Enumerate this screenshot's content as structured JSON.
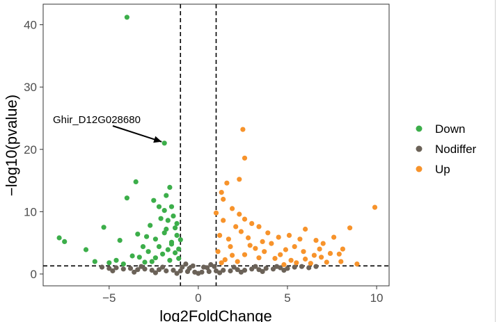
{
  "chart_data": {
    "type": "scatter",
    "title": "",
    "xlabel": "log2FoldChange",
    "ylabel": "−log10(pvalue)",
    "xlim": [
      -8.7,
      10.7
    ],
    "ylim": [
      -1.9,
      43.3
    ],
    "x_ticks": [
      -5,
      0,
      5,
      10
    ],
    "y_ticks": [
      0,
      10,
      20,
      30,
      40
    ],
    "grid": false,
    "legend_position": "right",
    "thresholds": {
      "log2fc": [
        -1,
        1
      ],
      "neg_log10_p": 1.3
    },
    "series": [
      {
        "name": "Down",
        "color": "#3cae4a",
        "points": [
          [
            -4.0,
            41.2
          ],
          [
            -1.9,
            21.0
          ],
          [
            -3.5,
            14.8
          ],
          [
            -4.0,
            12.2
          ],
          [
            -1.6,
            13.9
          ],
          [
            -1.8,
            12.6
          ],
          [
            -2.5,
            11.8
          ],
          [
            -2.2,
            10.8
          ],
          [
            -1.9,
            10.2
          ],
          [
            -1.5,
            10.8
          ],
          [
            -7.8,
            5.8
          ],
          [
            -7.5,
            5.2
          ],
          [
            -6.3,
            3.9
          ],
          [
            -5.3,
            7.5
          ],
          [
            -4.4,
            5.4
          ],
          [
            -3.4,
            6.4
          ],
          [
            -3.1,
            4.4
          ],
          [
            -2.7,
            7.8
          ],
          [
            -2.4,
            5.6
          ],
          [
            -1.7,
            8.6
          ],
          [
            -1.3,
            7.4
          ],
          [
            -1.2,
            6.2
          ],
          [
            -1.5,
            5.1
          ],
          [
            -1.1,
            4.0
          ],
          [
            -2.0,
            3.2
          ],
          [
            -2.4,
            2.6
          ],
          [
            -1.6,
            2.2
          ],
          [
            -3.7,
            2.9
          ],
          [
            -4.6,
            2.2
          ],
          [
            -5.8,
            2.0
          ],
          [
            -5.0,
            1.8
          ],
          [
            -3.0,
            1.9
          ],
          [
            -2.8,
            3.6
          ],
          [
            -2.2,
            4.4
          ],
          [
            -1.9,
            6.6
          ],
          [
            -1.4,
            9.3
          ],
          [
            -1.2,
            8.1
          ],
          [
            -1.8,
            7.2
          ],
          [
            -1.3,
            3.4
          ],
          [
            -1.1,
            2.5
          ],
          [
            -2.9,
            6.0
          ],
          [
            -2.1,
            8.9
          ],
          [
            -1.5,
            4.8
          ],
          [
            -1.0,
            5.5
          ],
          [
            -3.3,
            2.7
          ],
          [
            -4.2,
            1.6
          ],
          [
            -2.6,
            2.0
          ],
          [
            -1.7,
            3.9
          ]
        ]
      },
      {
        "name": "Nodiffer",
        "color": "#6b6258",
        "points": [
          [
            -5.4,
            1.1
          ],
          [
            -5.0,
            0.9
          ],
          [
            -4.6,
            1.0
          ],
          [
            -4.2,
            0.8
          ],
          [
            -3.8,
            0.9
          ],
          [
            -3.4,
            0.7
          ],
          [
            -3.0,
            0.8
          ],
          [
            -2.6,
            0.6
          ],
          [
            -2.2,
            0.7
          ],
          [
            -1.8,
            0.5
          ],
          [
            -1.4,
            0.6
          ],
          [
            -1.0,
            0.5
          ],
          [
            -0.6,
            0.4
          ],
          [
            -0.2,
            0.3
          ],
          [
            0.2,
            0.3
          ],
          [
            0.6,
            0.4
          ],
          [
            1.0,
            0.5
          ],
          [
            1.4,
            0.6
          ],
          [
            1.8,
            0.5
          ],
          [
            2.2,
            0.7
          ],
          [
            2.6,
            0.6
          ],
          [
            3.0,
            0.8
          ],
          [
            3.4,
            0.7
          ],
          [
            3.8,
            0.9
          ],
          [
            4.2,
            0.8
          ],
          [
            4.6,
            1.0
          ],
          [
            5.0,
            0.9
          ],
          [
            5.4,
            1.1
          ],
          [
            5.8,
            1.2
          ],
          [
            6.2,
            1.0
          ],
          [
            -4.8,
            0.5
          ],
          [
            -3.6,
            0.3
          ],
          [
            -2.4,
            0.2
          ],
          [
            -1.2,
            0.1
          ],
          [
            0.0,
            0.1
          ],
          [
            1.2,
            0.2
          ],
          [
            2.4,
            0.3
          ],
          [
            3.6,
            0.4
          ],
          [
            4.8,
            0.6
          ],
          [
            -0.9,
            1.1
          ],
          [
            -0.5,
            0.9
          ],
          [
            0.5,
            1.0
          ],
          [
            0.9,
            1.2
          ],
          [
            -0.7,
            1.6
          ],
          [
            0.7,
            1.5
          ],
          [
            -0.3,
            1.3
          ],
          [
            0.3,
            1.1
          ],
          [
            6.6,
            1.2
          ],
          [
            -3.2,
            1.2
          ],
          [
            -2.0,
            1.1
          ],
          [
            2.0,
            1.1
          ],
          [
            3.2,
            1.2
          ],
          [
            4.4,
            1.2
          ]
        ]
      },
      {
        "name": "Up",
        "color": "#f7932b",
        "points": [
          [
            2.5,
            23.2
          ],
          [
            9.9,
            10.7
          ],
          [
            2.6,
            18.6
          ],
          [
            2.3,
            15.2
          ],
          [
            1.6,
            14.6
          ],
          [
            1.3,
            13.1
          ],
          [
            1.4,
            12.0
          ],
          [
            1.0,
            9.8
          ],
          [
            1.9,
            10.5
          ],
          [
            2.3,
            9.6
          ],
          [
            2.6,
            8.8
          ],
          [
            3.0,
            8.1
          ],
          [
            3.4,
            7.6
          ],
          [
            3.9,
            6.6
          ],
          [
            4.5,
            5.9
          ],
          [
            5.1,
            6.2
          ],
          [
            5.7,
            5.6
          ],
          [
            6.0,
            7.2
          ],
          [
            6.6,
            5.4
          ],
          [
            7.0,
            4.9
          ],
          [
            7.6,
            5.9
          ],
          [
            8.1,
            4.0
          ],
          [
            8.5,
            7.4
          ],
          [
            7.9,
            3.2
          ],
          [
            6.9,
            2.7
          ],
          [
            6.0,
            2.4
          ],
          [
            5.2,
            2.2
          ],
          [
            4.3,
            2.5
          ],
          [
            3.4,
            2.6
          ],
          [
            2.6,
            3.1
          ],
          [
            1.8,
            4.4
          ],
          [
            1.2,
            6.2
          ],
          [
            1.4,
            8.6
          ],
          [
            2.1,
            7.6
          ],
          [
            1.1,
            3.6
          ],
          [
            1.5,
            2.3
          ],
          [
            2.9,
            4.6
          ],
          [
            3.7,
            3.6
          ],
          [
            4.9,
            3.9
          ],
          [
            8.9,
            1.6
          ],
          [
            8.0,
            2.0
          ],
          [
            7.2,
            1.9
          ],
          [
            6.3,
            1.7
          ],
          [
            5.5,
            1.8
          ],
          [
            4.8,
            1.5
          ],
          [
            1.7,
            5.6
          ],
          [
            2.8,
            5.8
          ],
          [
            3.2,
            4.1
          ],
          [
            4.1,
            4.9
          ],
          [
            1.3,
            1.8
          ],
          [
            2.2,
            2.0
          ],
          [
            5.9,
            3.6
          ],
          [
            6.5,
            3.0
          ],
          [
            7.4,
            3.3
          ],
          [
            3.6,
            5.2
          ],
          [
            2.4,
            6.8
          ],
          [
            4.6,
            3.1
          ],
          [
            5.4,
            4.4
          ],
          [
            6.8,
            4.0
          ],
          [
            1.9,
            3.0
          ]
        ]
      }
    ],
    "annotations": [
      {
        "text": "Ghir_D12G028680",
        "x": -1.9,
        "y": 21.0
      }
    ]
  }
}
